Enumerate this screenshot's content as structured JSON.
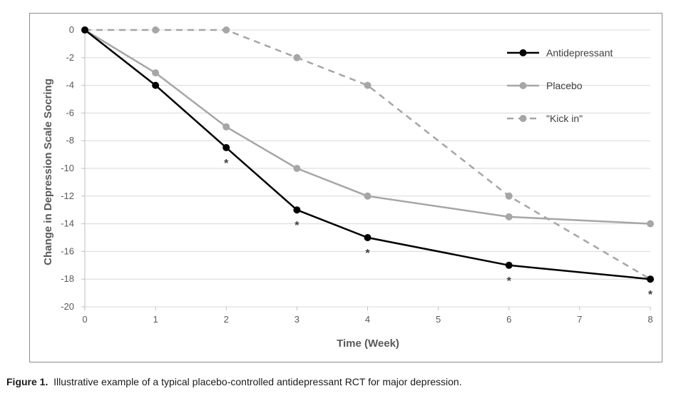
{
  "chart_data": {
    "type": "line",
    "xlabel": "Time (Week)",
    "ylabel": "Change in Depression Scale Socring",
    "xlim": [
      0,
      8
    ],
    "ylim": [
      -20,
      0
    ],
    "x_ticks": [
      "0",
      "1",
      "2",
      "3",
      "4",
      "5",
      "6",
      "7",
      "8"
    ],
    "y_ticks": [
      "0",
      "-2",
      "-4",
      "-6",
      "-8",
      "-10",
      "-12",
      "-14",
      "-16",
      "-18",
      "-20"
    ],
    "grid": "horizontal",
    "legend_position": "top-right",
    "series": [
      {
        "name": "Antidepressant",
        "color": "#000000",
        "style": "solid",
        "x": [
          0,
          1,
          2,
          3,
          4,
          6,
          8
        ],
        "y": [
          0,
          -4,
          -8.5,
          -13,
          -15,
          -17,
          -18
        ]
      },
      {
        "name": "Placebo",
        "color": "#a6a6a6",
        "style": "solid",
        "x": [
          0,
          1,
          2,
          3,
          4,
          6,
          8
        ],
        "y": [
          0,
          -3.1,
          -7,
          -10,
          -12,
          -13.5,
          -14
        ]
      },
      {
        "name": "\"Kick in\"",
        "color": "#a6a6a6",
        "style": "dashed",
        "x": [
          0,
          1,
          2,
          3,
          4,
          6,
          8
        ],
        "y": [
          0,
          0,
          0,
          -2,
          -4,
          -12,
          -18
        ]
      }
    ],
    "annotations": [
      {
        "text": "*",
        "x": 2,
        "y": -8.5
      },
      {
        "text": "*",
        "x": 3,
        "y": -13
      },
      {
        "text": "*",
        "x": 4,
        "y": -15
      },
      {
        "text": "*",
        "x": 6,
        "y": -17
      },
      {
        "text": "*",
        "x": 8,
        "y": -18
      }
    ]
  },
  "caption": {
    "label": "Figure 1.",
    "text": "Illustrative example of a typical placebo-controlled antidepressant RCT for major depression."
  }
}
